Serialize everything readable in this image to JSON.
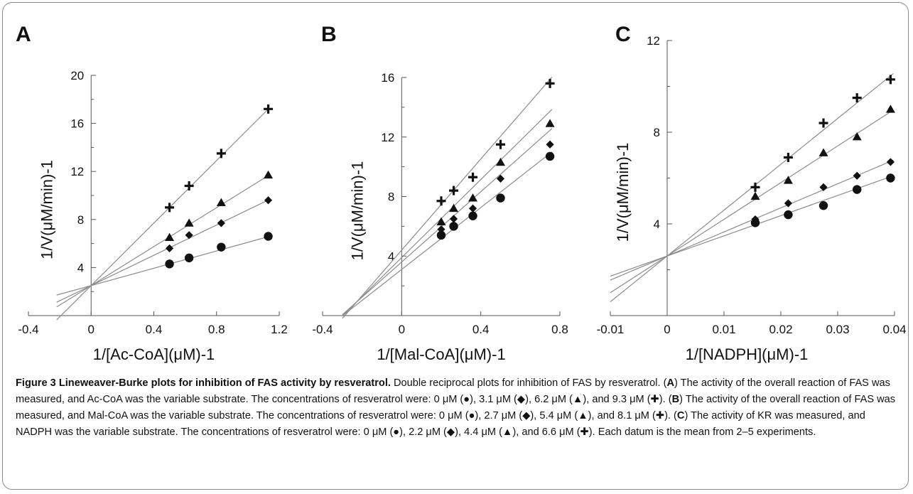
{
  "chart_data": [
    {
      "panel": "A",
      "type": "line",
      "xlabel": "1/[Ac-CoA](μM)-1",
      "ylabel": "1/V(μM/min)-1",
      "xlim": [
        -0.4,
        1.2
      ],
      "ylim": [
        0,
        20
      ],
      "xticks": [
        "-0.4",
        "0",
        "0.4",
        "0.8",
        "1.2"
      ],
      "yticks": [
        "4",
        "8",
        "12",
        "16",
        "20"
      ],
      "x": [
        0.5,
        0.625,
        0.83,
        1.13
      ],
      "series": [
        {
          "marker": "circle",
          "values": [
            4.3,
            4.8,
            5.7,
            6.6
          ],
          "slope": 3.6,
          "intercept": 2.5
        },
        {
          "marker": "diamond",
          "values": [
            5.6,
            6.7,
            7.7,
            9.6
          ],
          "slope": 6.3,
          "intercept": 2.5
        },
        {
          "marker": "triangle",
          "values": [
            6.5,
            7.7,
            9.4,
            11.7
          ],
          "slope": 8.1,
          "intercept": 2.5
        },
        {
          "marker": "cross",
          "values": [
            9.0,
            10.8,
            13.5,
            17.2
          ],
          "slope": 13.0,
          "intercept": 2.5
        }
      ],
      "line_x_range": [
        -0.22,
        1.13
      ]
    },
    {
      "panel": "B",
      "type": "line",
      "xlabel": "1/[Mal-CoA](μM)-1",
      "ylabel": "1/V(μM/min)-1",
      "xlim": [
        -0.4,
        0.8
      ],
      "ylim": [
        0,
        16
      ],
      "xticks": [
        "-0.4",
        "0",
        "0.4",
        "0.8"
      ],
      "yticks": [
        "4",
        "8",
        "12",
        "16"
      ],
      "x": [
        0.2,
        0.263,
        0.36,
        0.5,
        0.75
      ],
      "series": [
        {
          "marker": "circle",
          "values": [
            5.4,
            6.0,
            6.7,
            7.9,
            10.7
          ],
          "slope": 10.4,
          "intercept": 3.1
        },
        {
          "marker": "diamond",
          "values": [
            5.8,
            6.5,
            7.2,
            9.2,
            11.5
          ],
          "slope": 11.8,
          "intercept": 3.6
        },
        {
          "marker": "triangle",
          "values": [
            6.3,
            7.2,
            7.9,
            10.3,
            12.9
          ],
          "slope": 13.1,
          "intercept": 3.9
        },
        {
          "marker": "cross",
          "values": [
            7.7,
            8.4,
            9.3,
            11.5,
            15.6
          ],
          "slope": 15.3,
          "intercept": 4.4
        }
      ],
      "line_x_range": [
        -0.3,
        0.76
      ]
    },
    {
      "panel": "C",
      "type": "line",
      "xlabel": "1/[NADPH](μM)-1",
      "ylabel": "1/V(μM/min)-1",
      "xlim": [
        -0.01,
        0.04
      ],
      "ylim": [
        0,
        12
      ],
      "xticks": [
        "-0.01",
        "0",
        "0.01",
        "0.02",
        "0.03",
        "0.04"
      ],
      "yticks": [
        "4",
        "8",
        "12"
      ],
      "x": [
        0.0155,
        0.0213,
        0.0275,
        0.0334,
        0.0393
      ],
      "series": [
        {
          "marker": "circle",
          "values": [
            4.05,
            4.4,
            4.8,
            5.5,
            6.0
          ],
          "slope": 88,
          "intercept": 2.6
        },
        {
          "marker": "diamond",
          "values": [
            4.2,
            4.9,
            5.6,
            6.1,
            6.7
          ],
          "slope": 105,
          "intercept": 2.6
        },
        {
          "marker": "triangle",
          "values": [
            5.2,
            5.9,
            7.1,
            7.8,
            9.0
          ],
          "slope": 160,
          "intercept": 2.6
        },
        {
          "marker": "cross",
          "values": [
            5.6,
            6.9,
            8.4,
            9.5,
            10.3
          ],
          "slope": 200,
          "intercept": 2.6
        }
      ],
      "line_x_range": [
        -0.01,
        0.0398
      ]
    }
  ],
  "caption": {
    "title": "Figure 3 Lineweaver-Burke plots for inhibition of FAS activity by resveratrol.",
    "line1": " Double reciprocal plots for inhibition of FAS by resveratrol. (",
    "A": "A",
    "line2": ") The activity of the overall reaction of FAS was measured, and Ac-CoA was the variable substrate. The concentrations of resveratrol were: 0 μM (●), 3.1 μM (◆), 6.2 μM (▲), and 9.3 μM (✚). (",
    "B": "B",
    "line3": ") The activity of the overall reaction of FAS was measured, and Mal-CoA was the variable substrate. The concentrations of resveratrol were: 0 μM (●), 2.7 μM (◆), 5.4 μM (▲), and 8.1 μM (✚). (",
    "C": "C",
    "line4": ") The activity of KR was measured, and NADPH was the variable substrate. The concentrations of resveratrol were: 0 μM (●), 2.2 μM (◆), 4.4 μM (▲), and 6.6 μM (✚). Each datum is the mean from 2–5 experiments."
  },
  "colors": {
    "axis": "#555555",
    "line": "#8c8c8c",
    "marker": "#111111",
    "frame": "#8a8a8a"
  }
}
